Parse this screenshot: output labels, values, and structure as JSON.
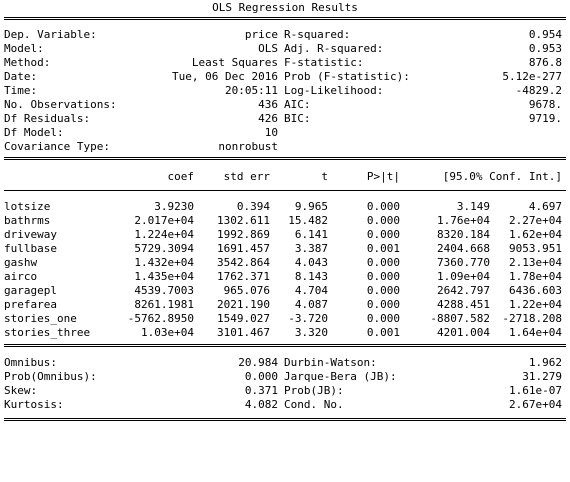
{
  "title": "OLS Regression Results",
  "summary": {
    "left": [
      {
        "label": "Dep. Variable:",
        "value": "price"
      },
      {
        "label": "Model:",
        "value": "OLS"
      },
      {
        "label": "Method:",
        "value": "Least Squares"
      },
      {
        "label": "Date:",
        "value": "Tue, 06 Dec 2016"
      },
      {
        "label": "Time:",
        "value": "20:05:11"
      },
      {
        "label": "No. Observations:",
        "value": "436"
      },
      {
        "label": "Df Residuals:",
        "value": "426"
      },
      {
        "label": "Df Model:",
        "value": "10"
      },
      {
        "label": "Covariance Type:",
        "value": "nonrobust"
      }
    ],
    "right": [
      {
        "label": "R-squared:",
        "value": "0.954"
      },
      {
        "label": "Adj. R-squared:",
        "value": "0.953"
      },
      {
        "label": "F-statistic:",
        "value": "876.8"
      },
      {
        "label": "Prob (F-statistic):",
        "value": "5.12e-277"
      },
      {
        "label": "Log-Likelihood:",
        "value": "-4829.2"
      },
      {
        "label": "AIC:",
        "value": "9678."
      },
      {
        "label": "BIC:",
        "value": "9719."
      }
    ]
  },
  "coef_table": {
    "headers": [
      "coef",
      "std err",
      "t",
      "P>|t|",
      "[95.0% Conf. Int.]"
    ],
    "rows": [
      {
        "name": "lotsize",
        "coef": "3.9230",
        "std_err": "0.394",
        "t": "9.965",
        "p": "0.000",
        "ci_low": "3.149",
        "ci_high": "4.697"
      },
      {
        "name": "bathrms",
        "coef": "2.017e+04",
        "std_err": "1302.611",
        "t": "15.482",
        "p": "0.000",
        "ci_low": "1.76e+04",
        "ci_high": "2.27e+04"
      },
      {
        "name": "driveway",
        "coef": "1.224e+04",
        "std_err": "1992.869",
        "t": "6.141",
        "p": "0.000",
        "ci_low": "8320.184",
        "ci_high": "1.62e+04"
      },
      {
        "name": "fullbase",
        "coef": "5729.3094",
        "std_err": "1691.457",
        "t": "3.387",
        "p": "0.001",
        "ci_low": "2404.668",
        "ci_high": "9053.951"
      },
      {
        "name": "gashw",
        "coef": "1.432e+04",
        "std_err": "3542.864",
        "t": "4.043",
        "p": "0.000",
        "ci_low": "7360.770",
        "ci_high": "2.13e+04"
      },
      {
        "name": "airco",
        "coef": "1.435e+04",
        "std_err": "1762.371",
        "t": "8.143",
        "p": "0.000",
        "ci_low": "1.09e+04",
        "ci_high": "1.78e+04"
      },
      {
        "name": "garagepl",
        "coef": "4539.7003",
        "std_err": "965.076",
        "t": "4.704",
        "p": "0.000",
        "ci_low": "2642.797",
        "ci_high": "6436.603"
      },
      {
        "name": "prefarea",
        "coef": "8261.1981",
        "std_err": "2021.190",
        "t": "4.087",
        "p": "0.000",
        "ci_low": "4288.451",
        "ci_high": "1.22e+04"
      },
      {
        "name": "stories_one",
        "coef": "-5762.8950",
        "std_err": "1549.027",
        "t": "-3.720",
        "p": "0.000",
        "ci_low": "-8807.582",
        "ci_high": "-2718.208"
      },
      {
        "name": "stories_three",
        "coef": "1.03e+04",
        "std_err": "3101.467",
        "t": "3.320",
        "p": "0.001",
        "ci_low": "4201.004",
        "ci_high": "1.64e+04"
      }
    ]
  },
  "diagnostics": {
    "left": [
      {
        "label": "Omnibus:",
        "value": "20.984"
      },
      {
        "label": "Prob(Omnibus):",
        "value": "0.000"
      },
      {
        "label": "Skew:",
        "value": "0.371"
      },
      {
        "label": "Kurtosis:",
        "value": "4.082"
      }
    ],
    "right": [
      {
        "label": "Durbin-Watson:",
        "value": "1.962"
      },
      {
        "label": "Jarque-Bera (JB):",
        "value": "31.279"
      },
      {
        "label": "Prob(JB):",
        "value": "1.61e-07"
      },
      {
        "label": "Cond. No.",
        "value": "2.67e+04"
      }
    ]
  }
}
